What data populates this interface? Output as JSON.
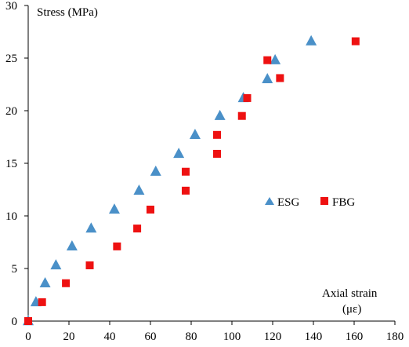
{
  "chart_data": {
    "type": "scatter",
    "ylabel": "Stress  (MPa)",
    "xlabel_line1": "Axial strain",
    "xlabel_line2": "(με)",
    "xlim": [
      0,
      180
    ],
    "ylim": [
      0,
      30
    ],
    "xticks": [
      0,
      20,
      40,
      60,
      80,
      100,
      120,
      140,
      160,
      180
    ],
    "yticks": [
      0,
      5,
      10,
      15,
      20,
      25,
      30
    ],
    "grid": false,
    "legend_position": "right-middle",
    "series": [
      {
        "name": "ESG",
        "marker": "triangle",
        "color": "#4A90C8",
        "points": [
          [
            0,
            0
          ],
          [
            3.8,
            1.8
          ],
          [
            8.3,
            3.6
          ],
          [
            13.6,
            5.3
          ],
          [
            21.5,
            7.1
          ],
          [
            30.9,
            8.8
          ],
          [
            42.3,
            10.6
          ],
          [
            54.4,
            12.4
          ],
          [
            62.6,
            14.2
          ],
          [
            73.9,
            15.9
          ],
          [
            81.9,
            17.7
          ],
          [
            94.1,
            19.5
          ],
          [
            105.6,
            21.2
          ],
          [
            117.4,
            23.0
          ],
          [
            121.2,
            24.8
          ],
          [
            138.9,
            26.6
          ]
        ]
      },
      {
        "name": "FBG",
        "marker": "square",
        "color": "#EE1111",
        "points": [
          [
            0,
            0
          ],
          [
            6.8,
            1.8
          ],
          [
            18.5,
            3.6
          ],
          [
            30.2,
            5.3
          ],
          [
            43.6,
            7.1
          ],
          [
            53.5,
            8.8
          ],
          [
            60.0,
            10.6
          ],
          [
            77.3,
            12.4
          ],
          [
            77.3,
            14.2
          ],
          [
            92.7,
            15.9
          ],
          [
            92.7,
            17.7
          ],
          [
            104.9,
            19.5
          ],
          [
            107.5,
            21.2
          ],
          [
            117.4,
            24.8
          ],
          [
            123.6,
            23.1
          ],
          [
            160.7,
            26.6
          ]
        ]
      }
    ]
  }
}
